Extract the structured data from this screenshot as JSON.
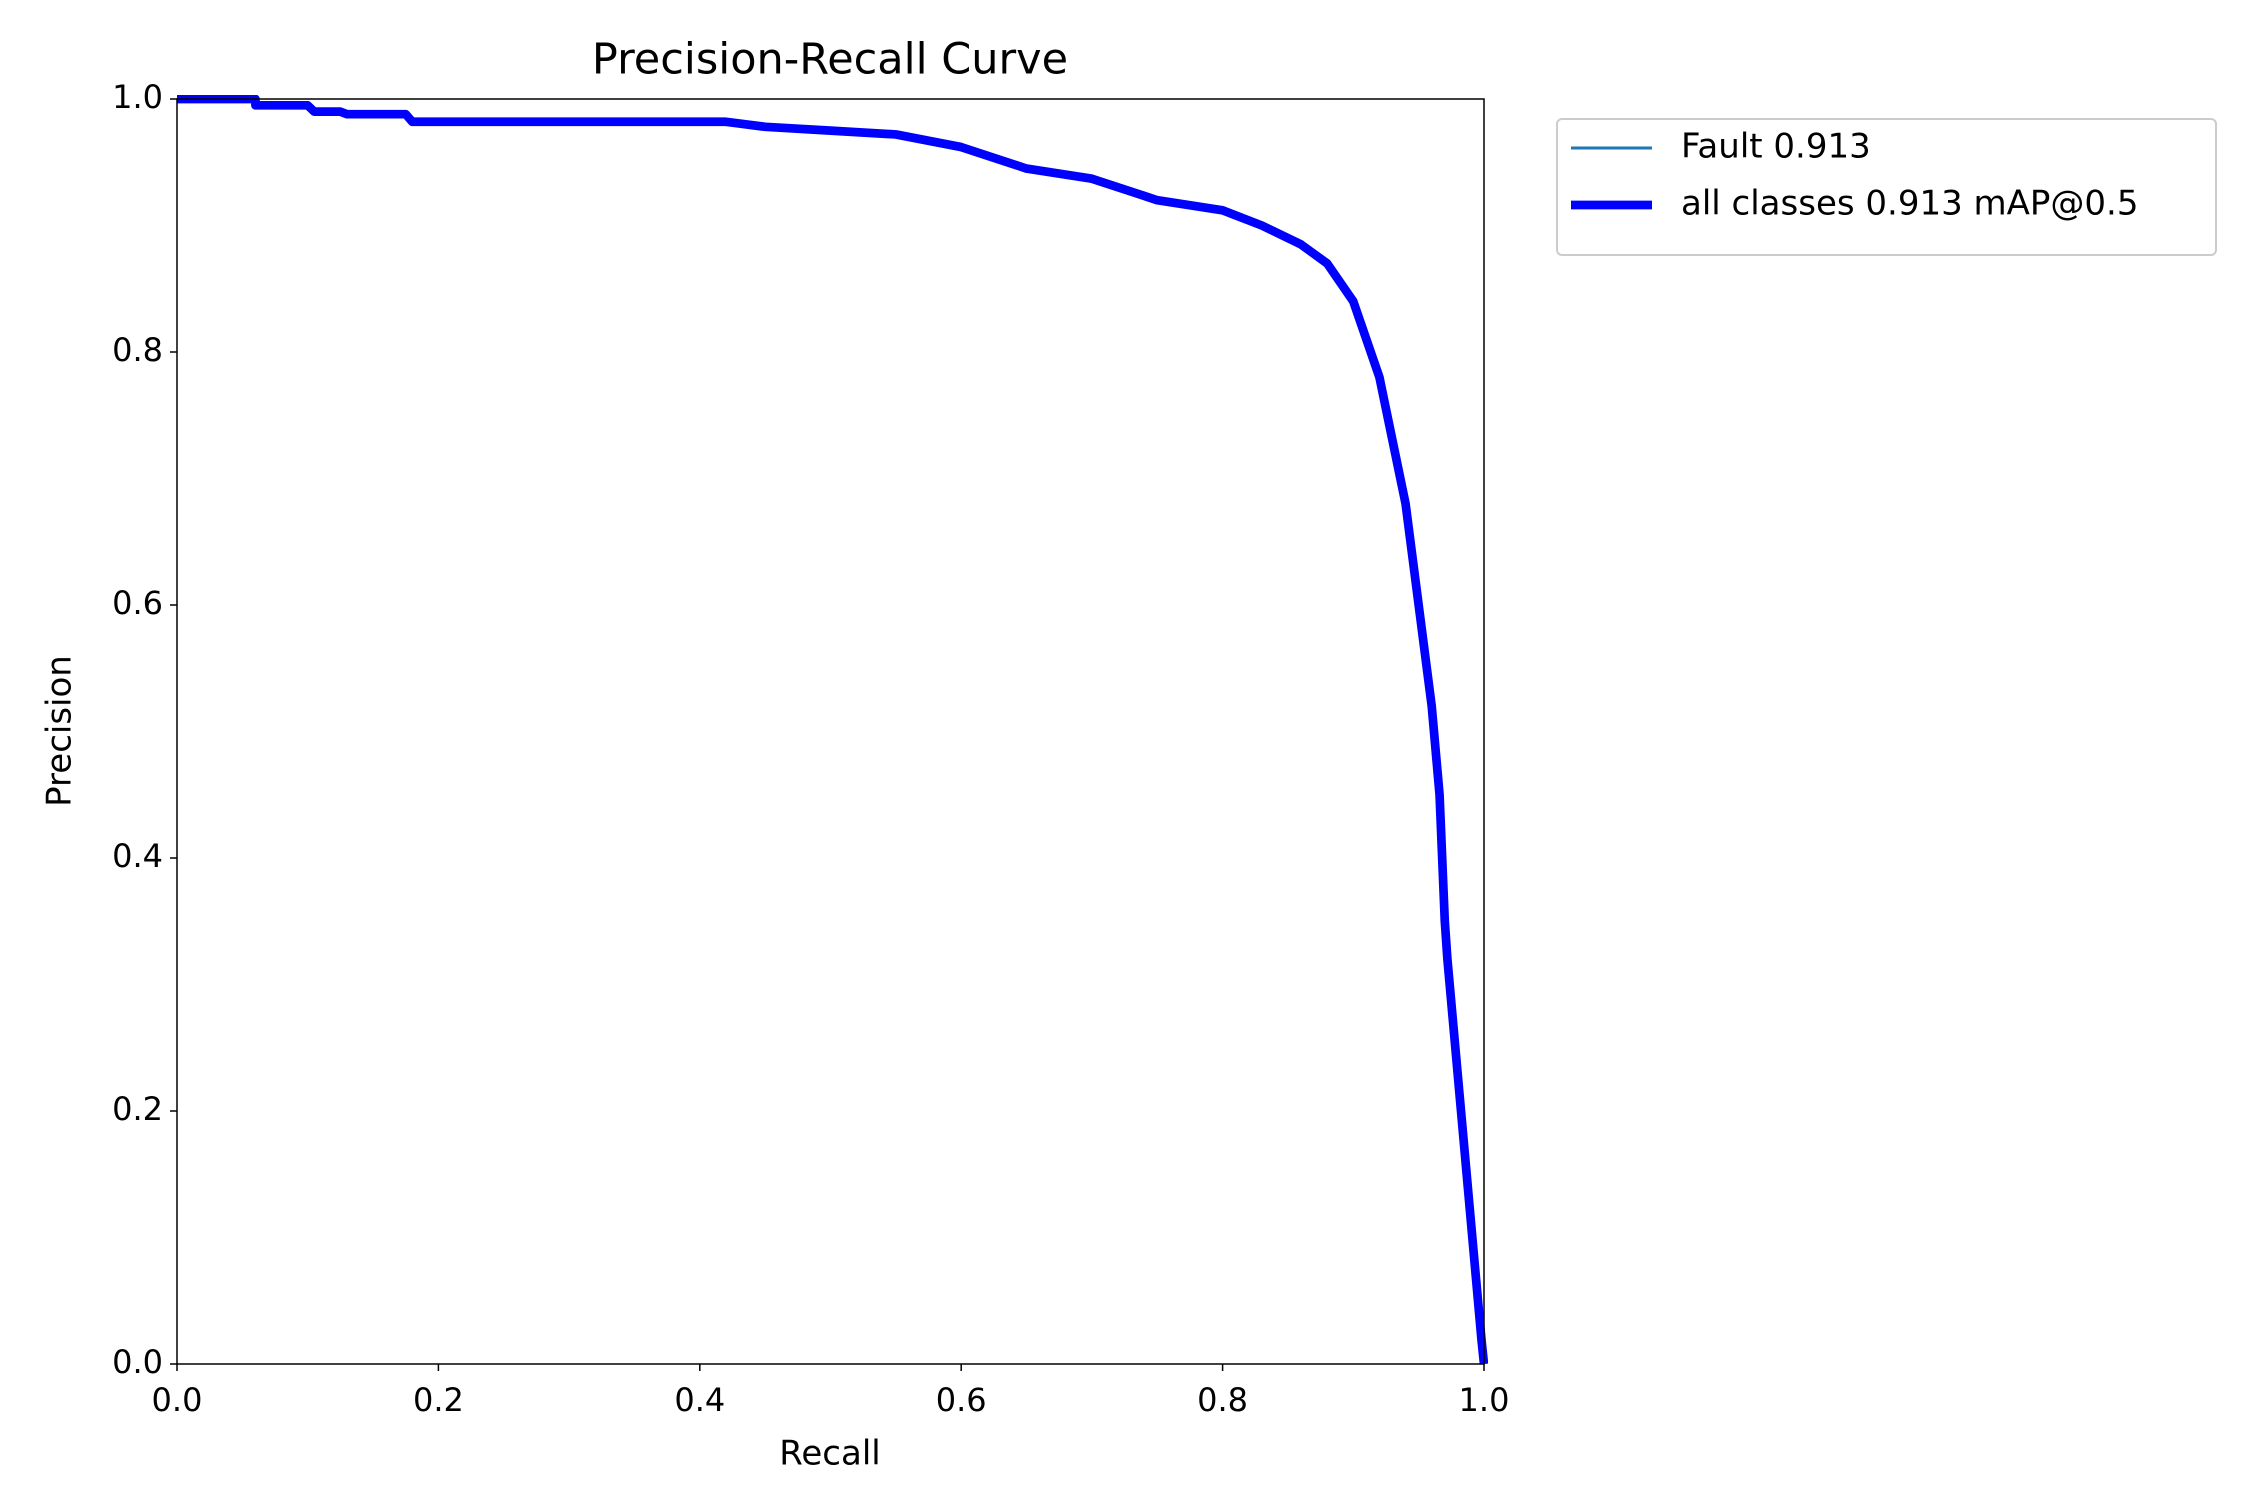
{
  "chart_data": {
    "type": "line",
    "title": "Precision-Recall Curve",
    "x_label": "Recall",
    "y_label": "Precision",
    "x": [
      0,
      0.06,
      0.06,
      0.1,
      0.105,
      0.125,
      0.13,
      0.175,
      0.18,
      0.42,
      0.45,
      0.5,
      0.55,
      0.6,
      0.65,
      0.7,
      0.75,
      0.8,
      0.83,
      0.86,
      0.88,
      0.9,
      0.92,
      0.94,
      0.95,
      0.96,
      0.966,
      0.97,
      0.972,
      0.998,
      1.0
    ],
    "series": [
      {
        "name": "Fault 0.913",
        "color": "#1f77b4",
        "line_width": 1,
        "values": [
          1.0,
          1.0,
          0.995,
          0.995,
          0.99,
          0.99,
          0.988,
          0.988,
          0.982,
          0.982,
          0.978,
          0.975,
          0.972,
          0.962,
          0.945,
          0.937,
          0.92,
          0.912,
          0.9,
          0.885,
          0.87,
          0.84,
          0.78,
          0.68,
          0.6,
          0.52,
          0.45,
          0.35,
          0.32,
          0.02,
          0.0
        ]
      },
      {
        "name": "all classes 0.913 mAP@0.5",
        "color": "#0000ff",
        "line_width": 3,
        "values": [
          1.0,
          1.0,
          0.995,
          0.995,
          0.99,
          0.99,
          0.988,
          0.988,
          0.982,
          0.982,
          0.978,
          0.975,
          0.972,
          0.962,
          0.945,
          0.937,
          0.92,
          0.912,
          0.9,
          0.885,
          0.87,
          0.84,
          0.78,
          0.68,
          0.6,
          0.52,
          0.45,
          0.35,
          0.32,
          0.02,
          0.0
        ]
      }
    ],
    "xlim": [
      0,
      1
    ],
    "ylim": [
      0,
      1
    ],
    "xticks": [
      {
        "value": 0,
        "label": "0.0"
      },
      0.2,
      0.4,
      0.6,
      0.8,
      {
        "value": 1,
        "label": "1.0"
      }
    ],
    "yticks": [
      {
        "value": 0,
        "label": "0.0"
      },
      0.2,
      0.4,
      0.6,
      0.8,
      {
        "value": 1,
        "label": "1.0"
      }
    ],
    "grid": false,
    "legend": "outside upper right"
  }
}
